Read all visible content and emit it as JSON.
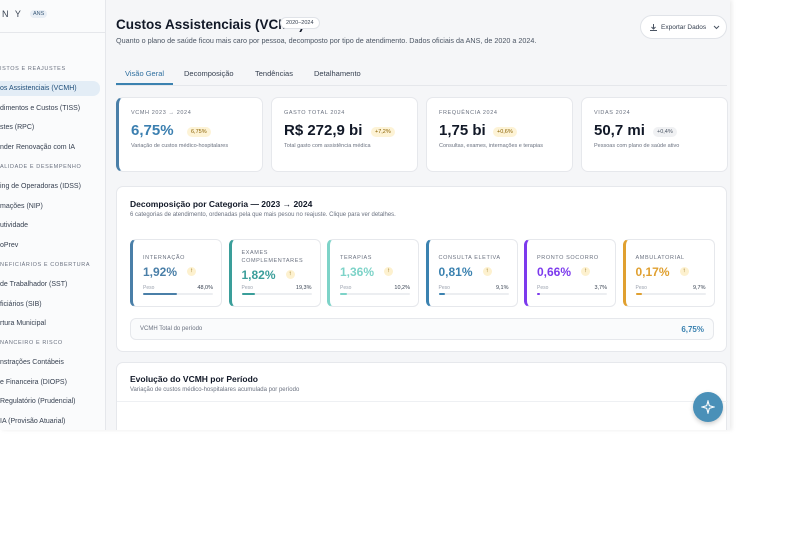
{
  "sidebar": {
    "logo": "N Y",
    "badge": "ANS",
    "sections": [
      {
        "title": "ISTOS E REAJUSTES",
        "items": [
          "os Assistenciais (VCMH)",
          "dimentos e Custos (TISS)",
          "stes (RPC)",
          "nder Renovação com IA"
        ]
      },
      {
        "title": "ALIDADE E DESEMPENHO",
        "items": [
          "ing de Operadoras (IDSS)",
          "mações (NIP)",
          "utividade",
          "oPrev"
        ]
      },
      {
        "title": "NEFICIÁRIOS E COBERTURA",
        "items": [
          "de Trabalhador (SST)",
          "ficiários (SIB)",
          "rtura Municipal"
        ]
      },
      {
        "title": "NANCEIRO E RISCO",
        "items": [
          "nstrações Contábeis",
          "e Financeira (DIOPS)",
          "Regulatório (Prudencial)",
          "IA (Provisão Atuarial)"
        ]
      }
    ]
  },
  "header": {
    "title": "Custos Assistenciais (VCMH)",
    "badge": "2020–2024",
    "subtitle": "Quanto o plano de saúde ficou mais caro por pessoa, decomposto por tipo de atendimento. Dados oficiais da ANS, de 2020 a 2024.",
    "button": "Exportar Dados"
  },
  "tabs": [
    "Visão Geral",
    "Decomposição",
    "Tendências",
    "Detalhamento"
  ],
  "kpis": [
    {
      "label": "VCMH 2023 → 2024",
      "value": "6,75%",
      "change": "6,75%",
      "note": "Variação de custos médico-hospitalares"
    },
    {
      "label": "GASTO TOTAL 2024",
      "value": "R$ 272,9 bi",
      "change": "+7,2%",
      "note": "Total gasto com assistência médica"
    },
    {
      "label": "FREQUÊNCIA 2024",
      "value": "1,75 bi",
      "change": "+0,6%",
      "note": "Consultas, exames, internações e terapias"
    },
    {
      "label": "VIDAS 2024",
      "value": "50,7 mi",
      "change": "+0,4%",
      "note": "Pessoas com plano de saúde ativo"
    }
  ],
  "decomposition": {
    "title": "Decomposição por Categoria — 2023 → 2024",
    "subtitle": "6 categorias de atendimento, ordenadas pela que mais pesou no reajuste. Clique para ver detalhes.",
    "weight_caption": "Peso",
    "categories": [
      {
        "name": "INTERNAÇÃO",
        "value": "1,92%",
        "weight": 48.0,
        "weight_label": "48,0%",
        "color": "#4a7fa8"
      },
      {
        "name": "EXAMES COMPLEMENTARES",
        "value": "1,82%",
        "weight": 19.3,
        "weight_label": "19,3%",
        "color": "#3a9e9a"
      },
      {
        "name": "TERAPIAS",
        "value": "1,36%",
        "weight": 10.2,
        "weight_label": "10,2%",
        "color": "#7dd3c8"
      },
      {
        "name": "CONSULTA ELETIVA",
        "value": "0,81%",
        "weight": 9.1,
        "weight_label": "9,1%",
        "color": "#3b82b0"
      },
      {
        "name": "PRONTO SOCORRO",
        "value": "0,66%",
        "weight": 3.7,
        "weight_label": "3,7%",
        "color": "#7c3aed"
      },
      {
        "name": "AMBULATORIAL",
        "value": "0,17%",
        "weight": 9.7,
        "weight_label": "9,7%",
        "color": "#e0a030"
      }
    ],
    "total_label": "VCMH Total do período",
    "total_value": "6,75%"
  },
  "evolution": {
    "title": "Evolução do VCMH por Período",
    "subtitle": "Variação de custos médico-hospitalares acumulada por período"
  }
}
